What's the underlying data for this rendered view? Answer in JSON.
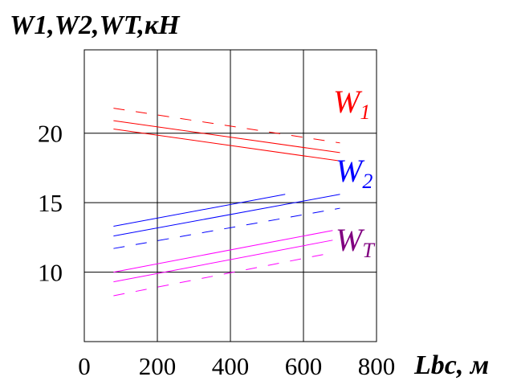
{
  "chart_data": {
    "type": "line",
    "ylabel": "W1,W2,WT,кН",
    "xlabel": "Lbc, м",
    "xlim": [
      0,
      800
    ],
    "ylim": [
      5,
      26
    ],
    "x_ticks": [
      0,
      200,
      400,
      600,
      800
    ],
    "y_ticks": [
      10,
      15,
      20
    ],
    "grid": true,
    "series": [
      {
        "name": "W1",
        "color": "#ff0000",
        "x": [
          80,
          700
        ],
        "y": [
          21.8,
          19.3
        ],
        "dash": true
      },
      {
        "name": "W1",
        "color": "#ff0000",
        "x": [
          80,
          700
        ],
        "y": [
          20.9,
          18.6
        ],
        "dash": false
      },
      {
        "name": "W1",
        "color": "#ff0000",
        "x": [
          80,
          700
        ],
        "y": [
          20.3,
          18.0
        ],
        "dash": false
      },
      {
        "name": "W2",
        "color": "#0000ff",
        "x": [
          80,
          550
        ],
        "y": [
          13.3,
          15.6
        ],
        "dash": false
      },
      {
        "name": "W2",
        "color": "#0000ff",
        "x": [
          80,
          700
        ],
        "y": [
          12.6,
          15.6
        ],
        "dash": false
      },
      {
        "name": "W2",
        "color": "#0000ff",
        "x": [
          80,
          700
        ],
        "y": [
          11.7,
          14.6
        ],
        "dash": true
      },
      {
        "name": "WT",
        "color": "#ff00ff",
        "x": [
          80,
          680
        ],
        "y": [
          10.0,
          13.0
        ],
        "dash": false
      },
      {
        "name": "WT",
        "color": "#ff00ff",
        "x": [
          80,
          680
        ],
        "y": [
          9.3,
          12.3
        ],
        "dash": false
      },
      {
        "name": "WT",
        "color": "#ff00ff",
        "x": [
          80,
          680
        ],
        "y": [
          8.3,
          11.4
        ],
        "dash": true
      }
    ],
    "annotations": [
      {
        "main": "W",
        "sub": "1",
        "color": "#ff0000"
      },
      {
        "main": "W",
        "sub": "2",
        "color": "#0000ff"
      },
      {
        "main": "W",
        "sub": "T",
        "color": "#800080"
      }
    ]
  }
}
